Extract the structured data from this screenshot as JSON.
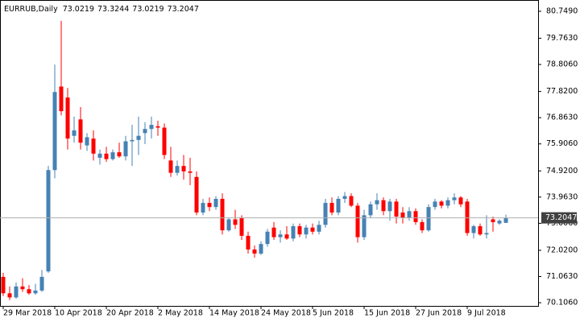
{
  "chart_data": {
    "type": "candlestick",
    "title": "EURRUB,Daily",
    "bull_color": "#4682b4",
    "bear_color": "#ff0000",
    "ylim": [
      69.99,
      81.16
    ],
    "yticks": [
      {
        "value": 80.749,
        "label": "80.7490"
      },
      {
        "value": 79.763,
        "label": "79.7630"
      },
      {
        "value": 78.806,
        "label": "78.8060"
      },
      {
        "value": 77.82,
        "label": "77.8200"
      },
      {
        "value": 76.863,
        "label": "76.8630"
      },
      {
        "value": 75.906,
        "label": "75.9060"
      },
      {
        "value": 74.92,
        "label": "74.9200"
      },
      {
        "value": 73.963,
        "label": "73.9630"
      },
      {
        "value": 73.006,
        "label": "73.0060"
      },
      {
        "value": 72.02,
        "label": "72.0200"
      },
      {
        "value": 71.063,
        "label": "71.0630"
      },
      {
        "value": 70.106,
        "label": "70.1060"
      }
    ],
    "categories": [
      "29 Mar 2018",
      null,
      null,
      null,
      null,
      null,
      null,
      null,
      "10 Apr 2018",
      null,
      null,
      null,
      null,
      null,
      null,
      null,
      "20 Apr 2018",
      null,
      null,
      null,
      null,
      null,
      null,
      null,
      "2 May 2018",
      null,
      null,
      null,
      null,
      null,
      null,
      null,
      "14 May 2018",
      null,
      null,
      null,
      null,
      null,
      null,
      null,
      "24 May 2018",
      null,
      null,
      null,
      null,
      null,
      null,
      null,
      "5 Jun 2018",
      null,
      null,
      null,
      null,
      null,
      null,
      null,
      "15 Jun 2018",
      null,
      null,
      null,
      null,
      null,
      null,
      null,
      "27 Jun 2018",
      null,
      null,
      null,
      null,
      null,
      null,
      null,
      "9 Jul 2018",
      null,
      null,
      null,
      null,
      null,
      null
    ],
    "open": [
      71.05,
      70.45,
      70.3,
      70.7,
      70.6,
      70.45,
      70.55,
      71.25,
      74.95,
      78.0,
      77.6,
      76.2,
      76.8,
      75.85,
      76.1,
      75.4,
      75.55,
      75.35,
      75.6,
      75.45,
      76.0,
      76.05,
      76.3,
      76.45,
      76.55,
      76.5,
      75.3,
      74.85,
      75.1,
      74.9,
      74.7,
      73.4,
      73.75,
      73.6,
      73.9,
      72.75,
      73.15,
      73.2,
      72.55,
      72.05,
      71.9,
      72.25,
      72.85,
      72.5,
      72.6,
      72.45,
      72.9,
      72.6,
      72.85,
      72.7,
      72.95,
      73.75,
      73.4,
      73.9,
      74.0,
      73.65,
      72.5,
      73.3,
      73.7,
      73.85,
      73.45,
      73.8,
      73.4,
      73.2,
      73.45,
      73.05,
      72.75,
      73.6,
      73.8,
      73.65,
      73.85,
      73.95,
      73.8,
      72.65,
      72.9,
      72.6,
      73.15,
      73.0,
      73.0219
    ],
    "high": [
      71.2,
      70.7,
      70.85,
      71.0,
      70.75,
      70.8,
      71.3,
      75.1,
      78.8,
      80.4,
      77.95,
      76.9,
      77.25,
      76.3,
      76.4,
      75.7,
      75.8,
      75.7,
      75.95,
      76.2,
      76.6,
      76.9,
      76.7,
      76.9,
      76.75,
      76.65,
      75.8,
      75.3,
      75.5,
      75.4,
      74.9,
      73.9,
      73.95,
      74.0,
      74.1,
      73.2,
      73.5,
      73.3,
      72.7,
      72.2,
      72.35,
      72.8,
      73.05,
      72.75,
      72.9,
      73.0,
      73.0,
      72.95,
      73.0,
      73.1,
      73.9,
      73.95,
      74.0,
      74.15,
      74.1,
      73.75,
      73.5,
      73.8,
      74.1,
      73.95,
      73.9,
      73.9,
      73.6,
      73.6,
      73.55,
      73.15,
      73.7,
      73.9,
      73.85,
      73.95,
      74.1,
      74.0,
      73.9,
      72.95,
      73.0,
      73.3,
      73.25,
      73.15,
      73.3244
    ],
    "low": [
      70.35,
      70.2,
      70.25,
      70.5,
      70.4,
      70.4,
      70.5,
      71.2,
      74.65,
      76.95,
      75.7,
      75.95,
      75.7,
      75.65,
      75.3,
      75.15,
      75.25,
      75.3,
      75.4,
      75.3,
      75.1,
      75.5,
      75.9,
      76.1,
      76.2,
      75.35,
      74.7,
      74.75,
      74.6,
      74.4,
      73.3,
      73.3,
      73.45,
      73.5,
      72.6,
      72.7,
      72.8,
      72.4,
      71.9,
      71.75,
      71.85,
      72.15,
      72.4,
      72.3,
      72.4,
      72.35,
      72.5,
      72.45,
      72.6,
      72.6,
      72.85,
      73.3,
      73.3,
      73.75,
      73.6,
      72.3,
      72.4,
      73.2,
      73.5,
      73.3,
      73.1,
      73.0,
      73.0,
      73.1,
      72.95,
      72.65,
      72.7,
      73.5,
      73.55,
      73.55,
      73.7,
      73.6,
      72.55,
      72.45,
      72.55,
      72.45,
      72.7,
      72.95,
      73.0219
    ],
    "close": [
      70.45,
      70.3,
      70.7,
      70.6,
      70.45,
      70.55,
      71.05,
      74.95,
      77.8,
      77.1,
      76.1,
      76.4,
      75.95,
      76.15,
      75.55,
      75.55,
      75.35,
      75.6,
      75.45,
      76.0,
      76.05,
      76.2,
      76.45,
      76.6,
      76.5,
      75.5,
      74.85,
      75.1,
      74.9,
      74.85,
      73.4,
      73.75,
      73.6,
      73.9,
      72.75,
      73.15,
      72.95,
      72.55,
      72.05,
      71.9,
      72.25,
      72.7,
      72.5,
      72.6,
      72.45,
      72.9,
      72.6,
      72.85,
      72.7,
      72.95,
      73.75,
      73.4,
      73.9,
      74.0,
      73.65,
      72.5,
      73.3,
      73.7,
      73.85,
      73.45,
      73.8,
      73.25,
      73.2,
      73.45,
      73.05,
      72.75,
      73.6,
      73.8,
      73.65,
      73.85,
      73.95,
      73.7,
      72.65,
      72.9,
      72.6,
      72.65,
      73.05,
      73.1,
      73.2047
    ]
  }
}
